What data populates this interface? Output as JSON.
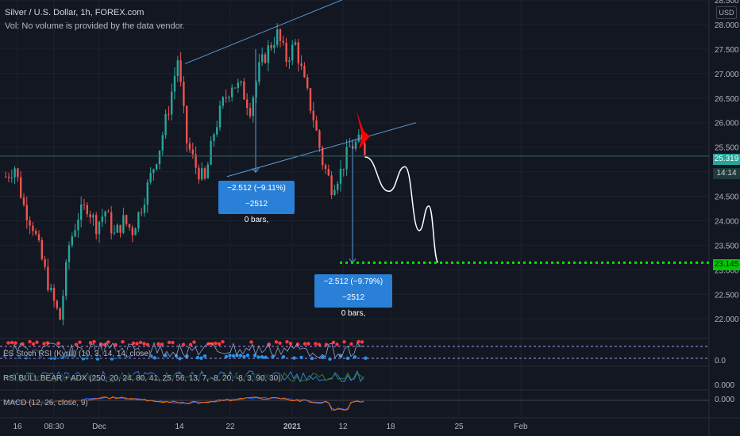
{
  "header": {
    "title": "Silver / U.S. Dollar, 1h, FOREX.com",
    "volume_note": "Vol: No volume is provided by the data vendor."
  },
  "currency_button": "USD",
  "price_tags": {
    "last_price": "25.319",
    "countdown": "14:14",
    "target_price": "23.145",
    "last_color": "#26a69a",
    "target_color": "#00e600"
  },
  "measurements": [
    {
      "line1": "−2.512 (−9.11%) −2512",
      "line2": "0 bars,"
    },
    {
      "line1": "−2.512 (−9.79%) −2512",
      "line2": "0 bars,"
    }
  ],
  "indicators": {
    "stoch_rsi": {
      "label": "ES Stoch RSI (Kyrill) (10, 3, 14, 14, close)",
      "axis_value": "0.0"
    },
    "rsi_adx": {
      "label": "RSI BULL BEAR + ADX (250, 20, 24, 80, 41, 25, 56, 13, 7, -8, 20, -8, 3, 90, 30)",
      "axis_value": "0.000"
    },
    "macd": {
      "label": "MACD (12, 26, close, 9)",
      "axis_value": "0.000"
    }
  },
  "colors": {
    "background": "#131722",
    "bull": "#26a69a",
    "bear": "#ef5350",
    "trendline": "#5b9bd5",
    "projection": "#ffffff",
    "target_line": "#00e600",
    "arrow": "#ff0000"
  },
  "chart_data": {
    "type": "candlestick",
    "title": "Silver / U.S. Dollar, 1h, FOREX.com",
    "ylabel": "USD",
    "ylim": [
      21.6,
      28.5
    ],
    "y_ticks": [
      "22.000",
      "22.500",
      "23.000",
      "23.500",
      "24.000",
      "24.500",
      "25.000",
      "25.500",
      "26.000",
      "26.500",
      "27.000",
      "27.500",
      "28.000",
      "28.500"
    ],
    "x_ticks": [
      "16",
      "08:30",
      "Dec",
      "14",
      "22",
      "2021",
      "12",
      "18",
      "25",
      "Feb"
    ],
    "price_path": [
      [
        0,
        24.9
      ],
      [
        3,
        25.1
      ],
      [
        6,
        24.3
      ],
      [
        9,
        23.9
      ],
      [
        12,
        23.2
      ],
      [
        15,
        22.5
      ],
      [
        18,
        22.0
      ],
      [
        21,
        23.5
      ],
      [
        24,
        24.1
      ],
      [
        27,
        24.3
      ],
      [
        30,
        23.9
      ],
      [
        33,
        24.2
      ],
      [
        36,
        23.7
      ],
      [
        39,
        24.0
      ],
      [
        42,
        23.8
      ],
      [
        45,
        24.3
      ],
      [
        48,
        24.9
      ],
      [
        51,
        25.5
      ],
      [
        54,
        26.3
      ],
      [
        57,
        27.3
      ],
      [
        60,
        25.6
      ],
      [
        63,
        25.1
      ],
      [
        66,
        24.8
      ],
      [
        69,
        25.8
      ],
      [
        72,
        26.4
      ],
      [
        75,
        26.8
      ],
      [
        78,
        26.7
      ],
      [
        81,
        26.3
      ],
      [
        84,
        27.1
      ],
      [
        87,
        27.5
      ],
      [
        90,
        27.8
      ],
      [
        93,
        27.3
      ],
      [
        96,
        27.6
      ],
      [
        99,
        26.8
      ],
      [
        102,
        26.1
      ],
      [
        105,
        25.2
      ],
      [
        108,
        24.7
      ],
      [
        111,
        25.0
      ],
      [
        114,
        25.5
      ],
      [
        117,
        25.6
      ],
      [
        120,
        25.35
      ]
    ],
    "last_price": 25.319,
    "target_price": 23.145,
    "trend_channel": {
      "upper": {
        "from": {
          "x": 0,
          "y": 27.2
        },
        "to": {
          "x": 1,
          "y": 28.8
        }
      },
      "lower": {
        "from": {
          "x": 0,
          "y": 24.9
        },
        "to": {
          "x": 1,
          "y": 26.0
        }
      }
    },
    "measurements": [
      {
        "from": 27.5,
        "to": 24.988,
        "change": -2.512,
        "percent": -9.11
      },
      {
        "from": 25.657,
        "to": 23.145,
        "change": -2.512,
        "percent": -9.79
      }
    ],
    "projection": [
      25.3,
      24.6,
      25.1,
      23.8,
      24.3,
      23.15
    ]
  }
}
